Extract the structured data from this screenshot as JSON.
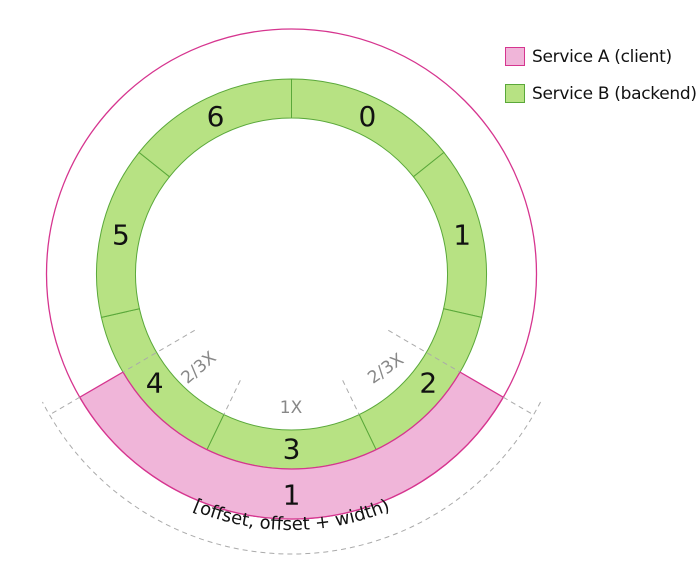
{
  "colors": {
    "service_a_fill": "#f0b5d9",
    "service_a_stroke": "#d6358f",
    "service_b_fill": "#b7e283",
    "service_b_stroke": "#5aa83a",
    "dashed": "#aaaaaa"
  },
  "legend": [
    {
      "label": "Service A (client)",
      "color_key": "service_a"
    },
    {
      "label": "Service B (backend)",
      "color_key": "service_b"
    }
  ],
  "backend_segments": [
    "0",
    "1",
    "2",
    "3",
    "4",
    "5",
    "6"
  ],
  "client_segment_label": "1",
  "weight_labels": {
    "left": "2/3X",
    "center": "1X",
    "right": "2/3X"
  },
  "range_label": "[offset, offset + width)"
}
